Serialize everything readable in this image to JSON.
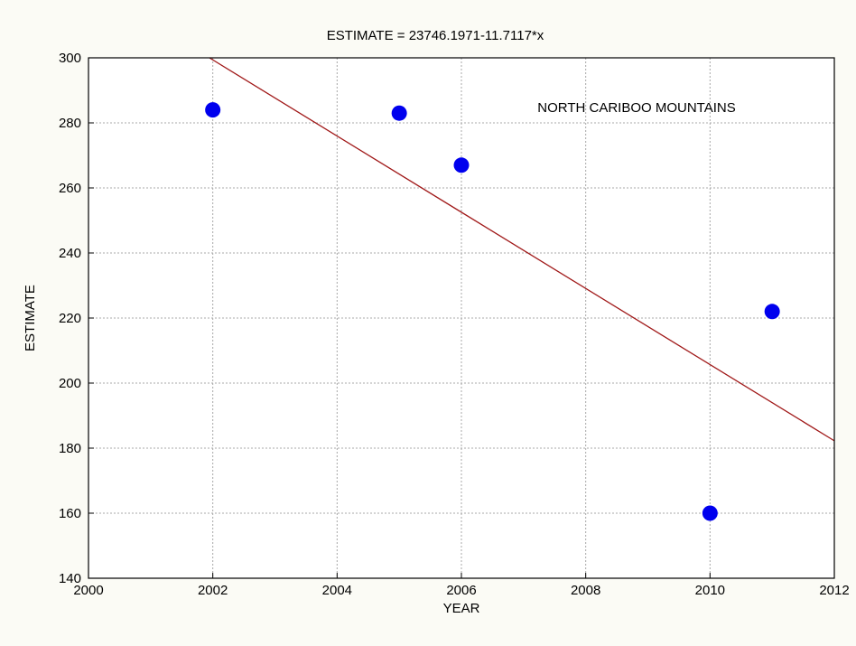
{
  "chart_data": {
    "type": "scatter",
    "title": "ESTIMATE = 23746.1971-11.7117*x",
    "xlabel": "YEAR",
    "ylabel": "ESTIMATE",
    "xlim": [
      2000,
      2012
    ],
    "ylim": [
      140,
      300
    ],
    "xticks": [
      2000,
      2002,
      2004,
      2006,
      2008,
      2010,
      2012
    ],
    "yticks": [
      140,
      160,
      180,
      200,
      220,
      240,
      260,
      280,
      300
    ],
    "grid": true,
    "annotation": "NORTH CARIBOO MOUNTAINS",
    "points": [
      {
        "x": 2002,
        "y": 284
      },
      {
        "x": 2005,
        "y": 283
      },
      {
        "x": 2006,
        "y": 267
      },
      {
        "x": 2010,
        "y": 160
      },
      {
        "x": 2011,
        "y": 222
      }
    ],
    "fit": {
      "intercept": 23746.1971,
      "slope": -11.7117
    },
    "colors": {
      "points": "#0000ee",
      "fit_line": "#a01818",
      "grid": "#a8a8a8",
      "background": "#fbfbf5",
      "plot_background": "#ffffff"
    }
  }
}
